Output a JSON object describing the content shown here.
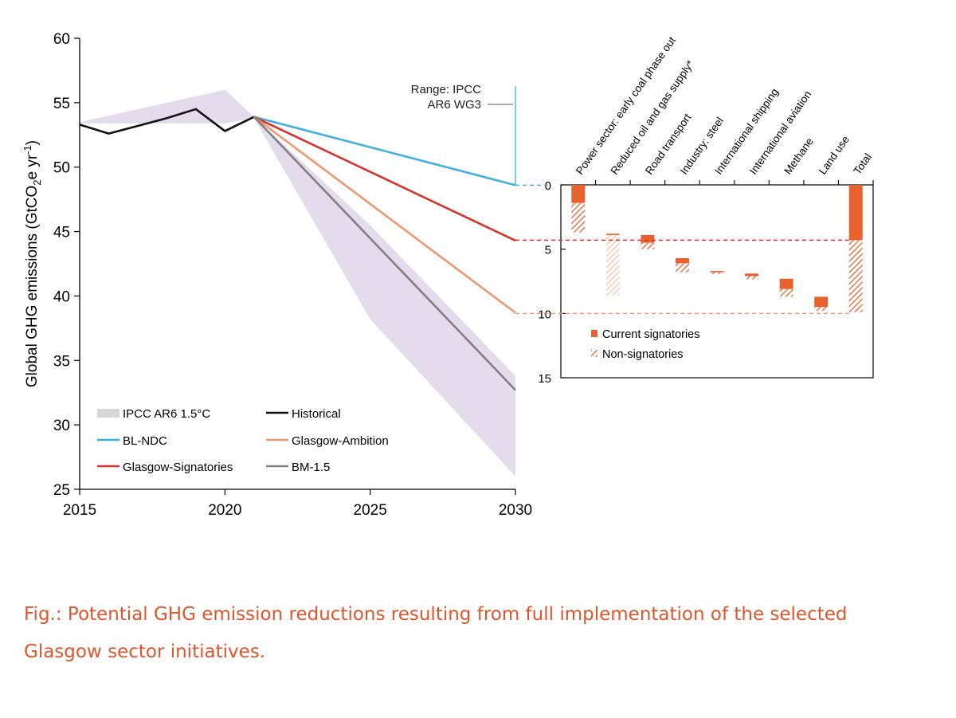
{
  "caption": "Fig.: Potential GHG emission reductions resulting from full implementation of the selected Glasgow sector initiatives.",
  "colors": {
    "bl_ndc": "#3fb0e0",
    "glasgow_signatories": "#d9322a",
    "glasgow_ambition": "#ef9870",
    "bm15": "#808080",
    "historical": "#111111",
    "ipcc_band": "#e4dced",
    "bar_fill": "#e8622f"
  },
  "chart_data": [
    {
      "type": "line",
      "ylabel_main": "Global GHG emissions (GtCO",
      "ylabel_sub": "2",
      "ylabel_mid": "e yr",
      "ylabel_sup": "-1",
      "ylabel_end": ")",
      "xlim": [
        2015,
        2030
      ],
      "ylim": [
        25,
        60
      ],
      "xticks": [
        "2015",
        "2020",
        "2025",
        "2030"
      ],
      "yticks": [
        "25",
        "30",
        "35",
        "40",
        "45",
        "50",
        "55",
        "60"
      ],
      "grid": false,
      "range_annotation": [
        "Range: IPCC",
        "AR6 WG3"
      ],
      "ipcc_band": {
        "name": "IPCC AR6 1.5°C",
        "upper": [
          [
            2015,
            53.5
          ],
          [
            2020,
            56.0
          ],
          [
            2025,
            45.5
          ],
          [
            2030,
            33.8
          ]
        ],
        "lower": [
          [
            2030,
            26.0
          ],
          [
            2025,
            38.2
          ],
          [
            2021,
            53.8
          ],
          [
            2020,
            53.4
          ],
          [
            2015,
            53.4
          ]
        ]
      },
      "series": [
        {
          "name": "Historical",
          "color_key": "historical",
          "points": [
            [
              2015,
              53.3
            ],
            [
              2016,
              52.6
            ],
            [
              2017,
              53.2
            ],
            [
              2018,
              53.8
            ],
            [
              2019,
              54.5
            ],
            [
              2020,
              52.8
            ],
            [
              2021,
              53.9
            ]
          ]
        },
        {
          "name": "BL-NDC",
          "color_key": "bl_ndc",
          "points": [
            [
              2021,
              53.9
            ],
            [
              2030,
              48.6
            ]
          ]
        },
        {
          "name": "Glasgow-Signatories",
          "color_key": "glasgow_signatories",
          "points": [
            [
              2021,
              53.9
            ],
            [
              2030,
              44.3
            ]
          ]
        },
        {
          "name": "Glasgow-Ambition",
          "color_key": "glasgow_ambition",
          "points": [
            [
              2021,
              53.9
            ],
            [
              2030,
              38.7
            ]
          ]
        },
        {
          "name": "BM-1.5",
          "color_key": "bm15",
          "points": [
            [
              2021,
              53.9
            ],
            [
              2030,
              32.7
            ]
          ]
        }
      ],
      "legend": [
        {
          "label": "IPCC AR6 1.5°C",
          "kind": "band"
        },
        {
          "label": "Historical",
          "color_key": "historical"
        },
        {
          "label": "BL-NDC",
          "color_key": "bl_ndc"
        },
        {
          "label": "Glasgow-Ambition",
          "color_key": "glasgow_ambition"
        },
        {
          "label": "Glasgow-Signatories",
          "color_key": "glasgow_signatories"
        },
        {
          "label": "BM-1.5",
          "color_key": "bm15"
        }
      ],
      "legend_position": "bottom-left"
    },
    {
      "type": "bar",
      "orientation": "waterfall",
      "yaxis_inverted": true,
      "ylim": [
        0,
        15
      ],
      "yticks": [
        "0",
        "5",
        "10",
        "15"
      ],
      "categories": [
        "Power sector: early coal phase out",
        "Reduced oil and gas supply*",
        "Road transport",
        "Industry: steel",
        "International shipping",
        "International aviation",
        "Methane",
        "Land use",
        "Total"
      ],
      "series": [
        {
          "name": "Current signatories",
          "ranges": [
            [
              0,
              1.4
            ],
            [
              3.8,
              3.9
            ],
            [
              3.9,
              4.5
            ],
            [
              5.7,
              6.1
            ],
            [
              6.7,
              6.8
            ],
            [
              6.9,
              7.1
            ],
            [
              7.3,
              8.1
            ],
            [
              8.7,
              9.5
            ],
            [
              0,
              4.3
            ]
          ]
        },
        {
          "name": "Non-signatories",
          "ranges": [
            [
              1.4,
              3.7
            ],
            [
              3.9,
              8.6
            ],
            [
              4.5,
              5.0
            ],
            [
              6.1,
              6.8
            ],
            [
              6.8,
              6.95
            ],
            [
              7.1,
              7.35
            ],
            [
              8.1,
              8.7
            ],
            [
              9.5,
              9.8
            ],
            [
              4.3,
              9.9
            ]
          ]
        }
      ],
      "reference_lines": [
        {
          "color_key": "bl_ndc",
          "value": 0
        },
        {
          "color_key": "glasgow_signatories",
          "value": 4.3
        },
        {
          "color_key": "glasgow_ambition",
          "value": 10
        }
      ],
      "legend": [
        {
          "label": "Current signatories",
          "kind": "solid"
        },
        {
          "label": "Non-signatories",
          "kind": "hatched"
        }
      ],
      "legend_position": "bottom-left"
    }
  ]
}
